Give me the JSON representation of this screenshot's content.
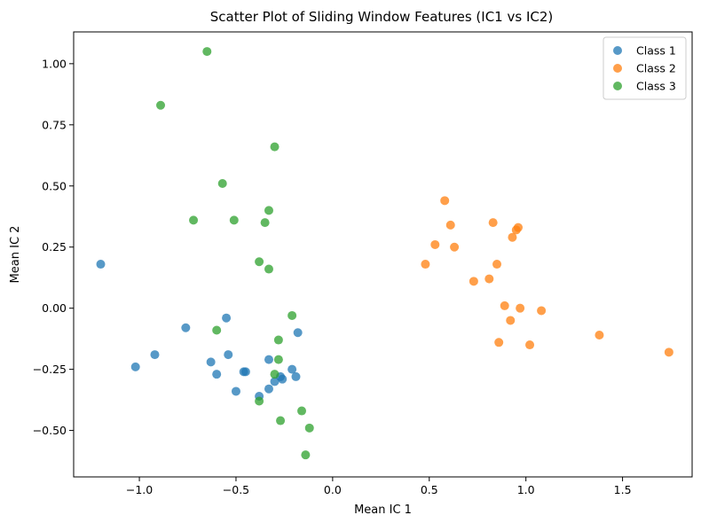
{
  "chart_data": {
    "type": "scatter",
    "title": "Scatter Plot of Sliding Window Features (IC1 vs IC2)",
    "xlabel": "Mean IC 1",
    "ylabel": "Mean IC 2",
    "xlim": [
      -1.34,
      1.86
    ],
    "ylim": [
      -0.69,
      1.13
    ],
    "xticks": [
      -1.0,
      -0.5,
      0.0,
      0.5,
      1.0,
      1.5
    ],
    "xtick_labels": [
      "−1.0",
      "−0.5",
      "0.0",
      "0.5",
      "1.0",
      "1.5"
    ],
    "yticks": [
      -0.5,
      -0.25,
      0.0,
      0.25,
      0.5,
      0.75,
      1.0
    ],
    "ytick_labels": [
      "−0.50",
      "−0.25",
      "0.00",
      "0.25",
      "0.50",
      "0.75",
      "1.00"
    ],
    "grid": false,
    "legend_position": "top-right",
    "series": [
      {
        "name": "Class 1",
        "color": "#1f77b4",
        "points": [
          [
            -1.2,
            0.18
          ],
          [
            -1.02,
            -0.24
          ],
          [
            -0.92,
            -0.19
          ],
          [
            -0.76,
            -0.08
          ],
          [
            -0.63,
            -0.22
          ],
          [
            -0.6,
            -0.27
          ],
          [
            -0.55,
            -0.04
          ],
          [
            -0.54,
            -0.19
          ],
          [
            -0.5,
            -0.34
          ],
          [
            -0.46,
            -0.26
          ],
          [
            -0.45,
            -0.26
          ],
          [
            -0.38,
            -0.36
          ],
          [
            -0.33,
            -0.21
          ],
          [
            -0.33,
            -0.33
          ],
          [
            -0.3,
            -0.3
          ],
          [
            -0.27,
            -0.28
          ],
          [
            -0.26,
            -0.29
          ],
          [
            -0.21,
            -0.25
          ],
          [
            -0.19,
            -0.28
          ],
          [
            -0.18,
            -0.1
          ]
        ]
      },
      {
        "name": "Class 2",
        "color": "#ff7f0e",
        "points": [
          [
            0.48,
            0.18
          ],
          [
            0.53,
            0.26
          ],
          [
            0.58,
            0.44
          ],
          [
            0.61,
            0.34
          ],
          [
            0.63,
            0.25
          ],
          [
            0.73,
            0.11
          ],
          [
            0.81,
            0.12
          ],
          [
            0.83,
            0.35
          ],
          [
            0.85,
            0.18
          ],
          [
            0.86,
            -0.14
          ],
          [
            0.89,
            0.01
          ],
          [
            0.92,
            -0.05
          ],
          [
            0.93,
            0.29
          ],
          [
            0.95,
            0.32
          ],
          [
            0.96,
            0.33
          ],
          [
            0.97,
            0.0
          ],
          [
            1.02,
            -0.15
          ],
          [
            1.08,
            -0.01
          ],
          [
            1.38,
            -0.11
          ],
          [
            1.74,
            -0.18
          ]
        ]
      },
      {
        "name": "Class 3",
        "color": "#2ca02c",
        "points": [
          [
            -0.65,
            1.05
          ],
          [
            -0.89,
            0.83
          ],
          [
            -0.3,
            0.66
          ],
          [
            -0.57,
            0.51
          ],
          [
            -0.72,
            0.36
          ],
          [
            -0.51,
            0.36
          ],
          [
            -0.33,
            0.4
          ],
          [
            -0.35,
            0.35
          ],
          [
            -0.38,
            0.19
          ],
          [
            -0.33,
            0.16
          ],
          [
            -0.6,
            -0.09
          ],
          [
            -0.21,
            -0.03
          ],
          [
            -0.28,
            -0.13
          ],
          [
            -0.28,
            -0.21
          ],
          [
            -0.3,
            -0.27
          ],
          [
            -0.38,
            -0.38
          ],
          [
            -0.16,
            -0.42
          ],
          [
            -0.27,
            -0.46
          ],
          [
            -0.12,
            -0.49
          ],
          [
            -0.14,
            -0.6
          ]
        ]
      }
    ]
  }
}
